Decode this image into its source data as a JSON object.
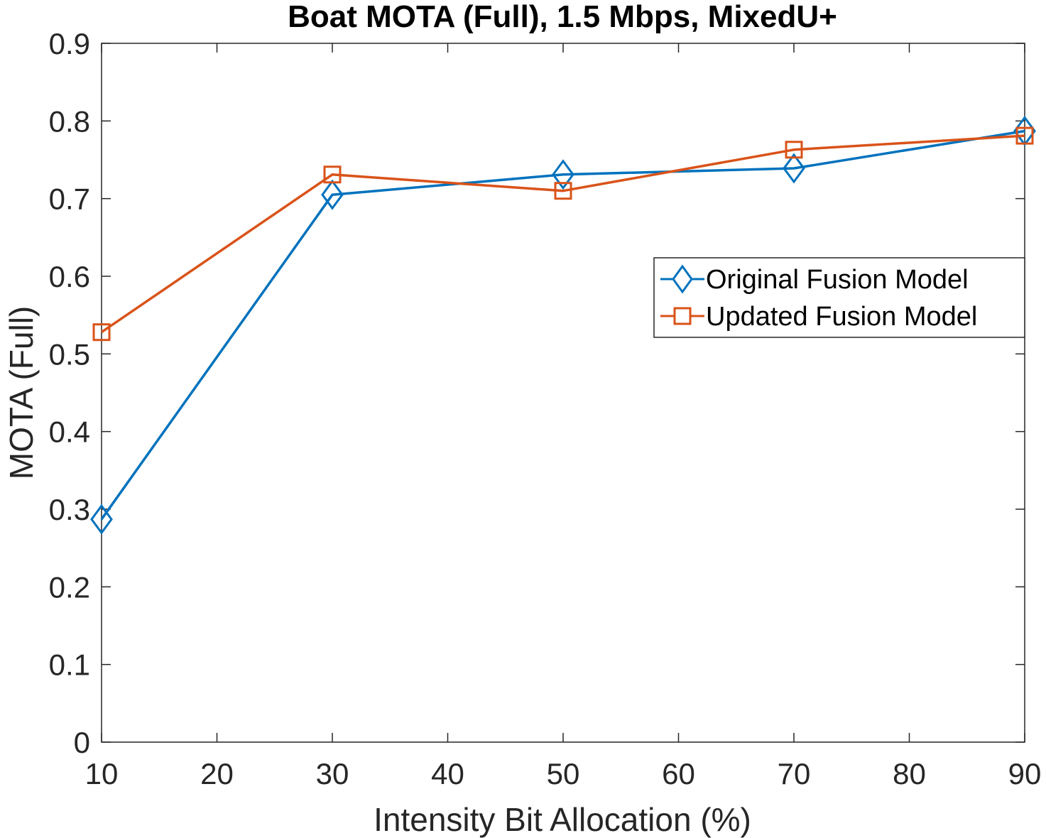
{
  "chart_data": {
    "type": "line",
    "title": "Boat MOTA (Full), 1.5 Mbps, MixedU+",
    "xlabel": "Intensity Bit Allocation (%)",
    "ylabel": "MOTA (Full)",
    "xlim": [
      10,
      90
    ],
    "ylim": [
      0,
      0.9
    ],
    "xticks": [
      10,
      20,
      30,
      40,
      50,
      60,
      70,
      80,
      90
    ],
    "yticks": [
      0,
      0.1,
      0.2,
      0.3,
      0.4,
      0.5,
      0.6,
      0.7,
      0.8,
      0.9
    ],
    "xtick_labels": [
      "10",
      "20",
      "30",
      "40",
      "50",
      "60",
      "70",
      "80",
      "90"
    ],
    "ytick_labels": [
      "0",
      "0.1",
      "0.2",
      "0.3",
      "0.4",
      "0.5",
      "0.6",
      "0.7",
      "0.8",
      "0.9"
    ],
    "x": [
      10,
      30,
      50,
      70,
      90
    ],
    "series": [
      {
        "name": "Original Fusion Model",
        "marker": "diamond",
        "color": "#0072BD",
        "values": [
          0.287,
          0.705,
          0.731,
          0.739,
          0.787
        ]
      },
      {
        "name": "Updated Fusion Model",
        "marker": "square",
        "color": "#D95319",
        "values": [
          0.528,
          0.731,
          0.71,
          0.763,
          0.781
        ]
      }
    ],
    "legend_position": "upper-right"
  }
}
